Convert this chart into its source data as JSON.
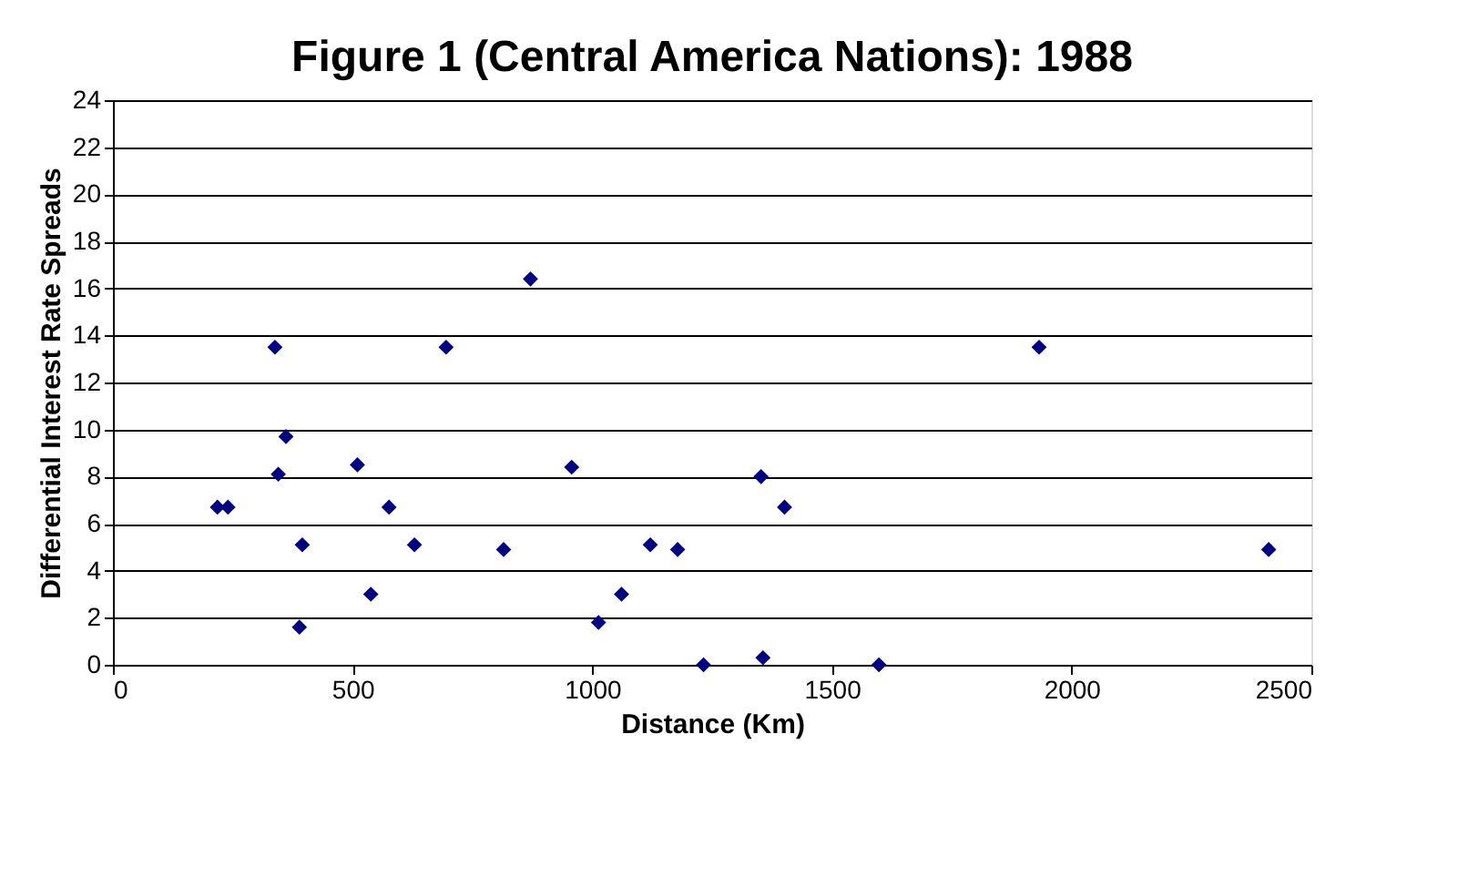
{
  "chart_data": {
    "type": "scatter",
    "title": "Figure 1 (Central America Nations): 1988",
    "xlabel": "Distance (Km)",
    "ylabel": "Differential Interest Rate Spreads",
    "series": [
      {
        "color": "#000080",
        "x": [
          218,
          240,
          338,
          345,
          361,
          395,
          389,
          510,
          538,
          576,
          629,
          695,
          815,
          871,
          957,
          1013,
          1061,
          1121,
          1178,
          1232,
          1352,
          1401,
          1356,
          1598,
          1932,
          2411
        ],
        "values": [
          6.7,
          6.7,
          13.5,
          8.1,
          9.7,
          5.1,
          1.6,
          8.5,
          3.0,
          6.7,
          5.1,
          13.5,
          4.9,
          16.4,
          8.4,
          1.8,
          3.0,
          5.1,
          4.9,
          0,
          8.0,
          6.7,
          0.3,
          0,
          13.5,
          4.9
        ]
      }
    ],
    "marker": "diamond",
    "grid": "y",
    "legend": false,
    "xlim": [
      0,
      2500
    ],
    "xticks": [
      0,
      500,
      1000,
      1500,
      2000,
      2500
    ],
    "ylim": [
      0,
      24
    ],
    "yticks": [
      0,
      2,
      4,
      6,
      8,
      10,
      12,
      14,
      16,
      18,
      20,
      22,
      24
    ]
  }
}
